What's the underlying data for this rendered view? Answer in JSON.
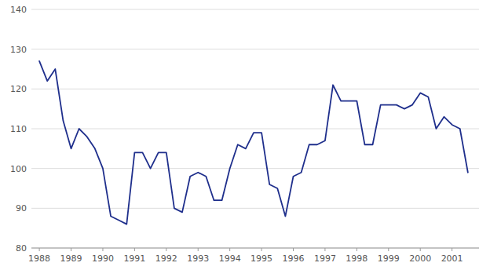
{
  "chart_data": {
    "type": "line",
    "x": [
      1988.0,
      1988.25,
      1988.5,
      1988.75,
      1989.0,
      1989.25,
      1989.5,
      1989.75,
      1990.0,
      1990.25,
      1990.5,
      1990.75,
      1991.0,
      1991.25,
      1991.5,
      1991.75,
      1992.0,
      1992.25,
      1992.5,
      1992.75,
      1993.0,
      1993.25,
      1993.5,
      1993.75,
      1994.0,
      1994.25,
      1994.5,
      1994.75,
      1995.0,
      1995.25,
      1995.5,
      1995.75,
      1996.0,
      1996.25,
      1996.5,
      1996.75,
      1997.0,
      1997.25,
      1997.5,
      1997.75,
      1998.0,
      1998.25,
      1998.5,
      1998.75,
      1999.0,
      1999.25,
      1999.5,
      1999.75,
      2000.0,
      2000.25,
      2000.5,
      2000.75,
      2001.0,
      2001.25,
      2001.5
    ],
    "values": [
      127,
      122,
      125,
      112,
      105,
      110,
      108,
      105,
      100,
      88,
      87,
      86,
      104,
      104,
      100,
      104,
      104,
      90,
      89,
      98,
      99,
      98,
      92,
      92,
      100,
      106,
      105,
      109,
      109,
      96,
      95,
      88,
      98,
      99,
      106,
      106,
      107,
      121,
      117,
      117,
      117,
      106,
      106,
      116,
      116,
      116,
      115,
      116,
      119,
      118,
      110,
      113,
      111,
      110,
      99
    ],
    "color": "#1F2F8C",
    "xlim": [
      1987.75,
      2001.85
    ],
    "xticks": [
      1988,
      1989,
      1990,
      1991,
      1992,
      1993,
      1994,
      1995,
      1996,
      1997,
      1998,
      1999,
      2000,
      2001
    ],
    "ylim": [
      80,
      140
    ],
    "yticks": [
      80,
      90,
      100,
      110,
      120,
      130,
      140
    ],
    "grid": true
  }
}
